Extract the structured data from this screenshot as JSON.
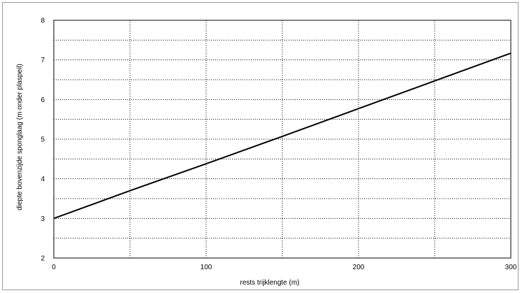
{
  "chart_data": {
    "type": "line",
    "title": "",
    "xlabel": "rests trijklengte (m)",
    "ylabel": "diepte bovenzijde sponglaag (m onder plaspeil)",
    "xlim": [
      0,
      300
    ],
    "ylim": [
      2,
      8
    ],
    "x_ticks": [
      0,
      100,
      200,
      300
    ],
    "y_ticks": [
      2,
      3,
      4,
      5,
      6,
      7,
      8
    ],
    "x_minor_grid": [
      50,
      150,
      250
    ],
    "y_minor_grid": [
      2.5,
      3.5,
      4.5,
      5.5,
      6.5,
      7.5
    ],
    "grid": true,
    "legend": "none",
    "colors": {
      "line": "#000000",
      "grid": "#000000",
      "frame": "#9a9a9a"
    },
    "series": [
      {
        "x": [
          0,
          50,
          100,
          150,
          200,
          250,
          300
        ],
        "y": [
          3.0,
          3.7,
          4.38,
          5.07,
          5.77,
          6.47,
          7.17
        ]
      }
    ]
  }
}
